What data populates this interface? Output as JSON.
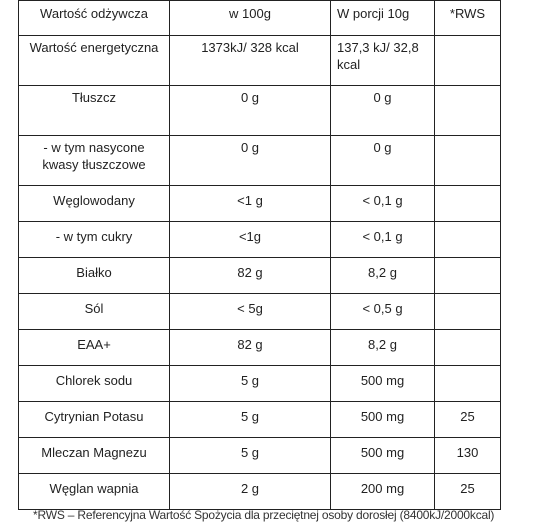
{
  "table": {
    "header": [
      "Wartość odżywcza",
      "w 100g",
      "W porcji 10g",
      "*RWS"
    ],
    "rows": [
      [
        "Wartość energetyczna",
        "1373kJ/ 328 kcal",
        "137,3 kJ/ 32,8 kcal",
        ""
      ],
      [
        "Tłuszcz",
        "0 g",
        "0 g",
        ""
      ],
      [
        "- w tym nasycone kwasy tłuszczowe",
        "0 g",
        "0 g",
        ""
      ],
      [
        "Węglowodany",
        "<1 g",
        "< 0,1 g",
        ""
      ],
      [
        "- w tym cukry",
        "<1g",
        "< 0,1 g",
        ""
      ],
      [
        "Białko",
        "82 g",
        "8,2 g",
        ""
      ],
      [
        "Sól",
        "< 5g",
        "< 0,5 g",
        ""
      ],
      [
        "EAA+",
        "82 g",
        "8,2 g",
        ""
      ],
      [
        "Chlorek sodu",
        "5 g",
        "500 mg",
        ""
      ],
      [
        "Cytrynian Potasu",
        "5 g",
        "500 mg",
        "25"
      ],
      [
        "Mleczan Magnezu",
        "5 g",
        "500 mg",
        "130"
      ],
      [
        "Węglan wapnia",
        "2 g",
        "200 mg",
        "25"
      ]
    ]
  },
  "footnote": "*RWS – Referencyjna Wartość Spożycia dla przeciętnej osoby dorosłej (8400kJ/2000kcal)"
}
